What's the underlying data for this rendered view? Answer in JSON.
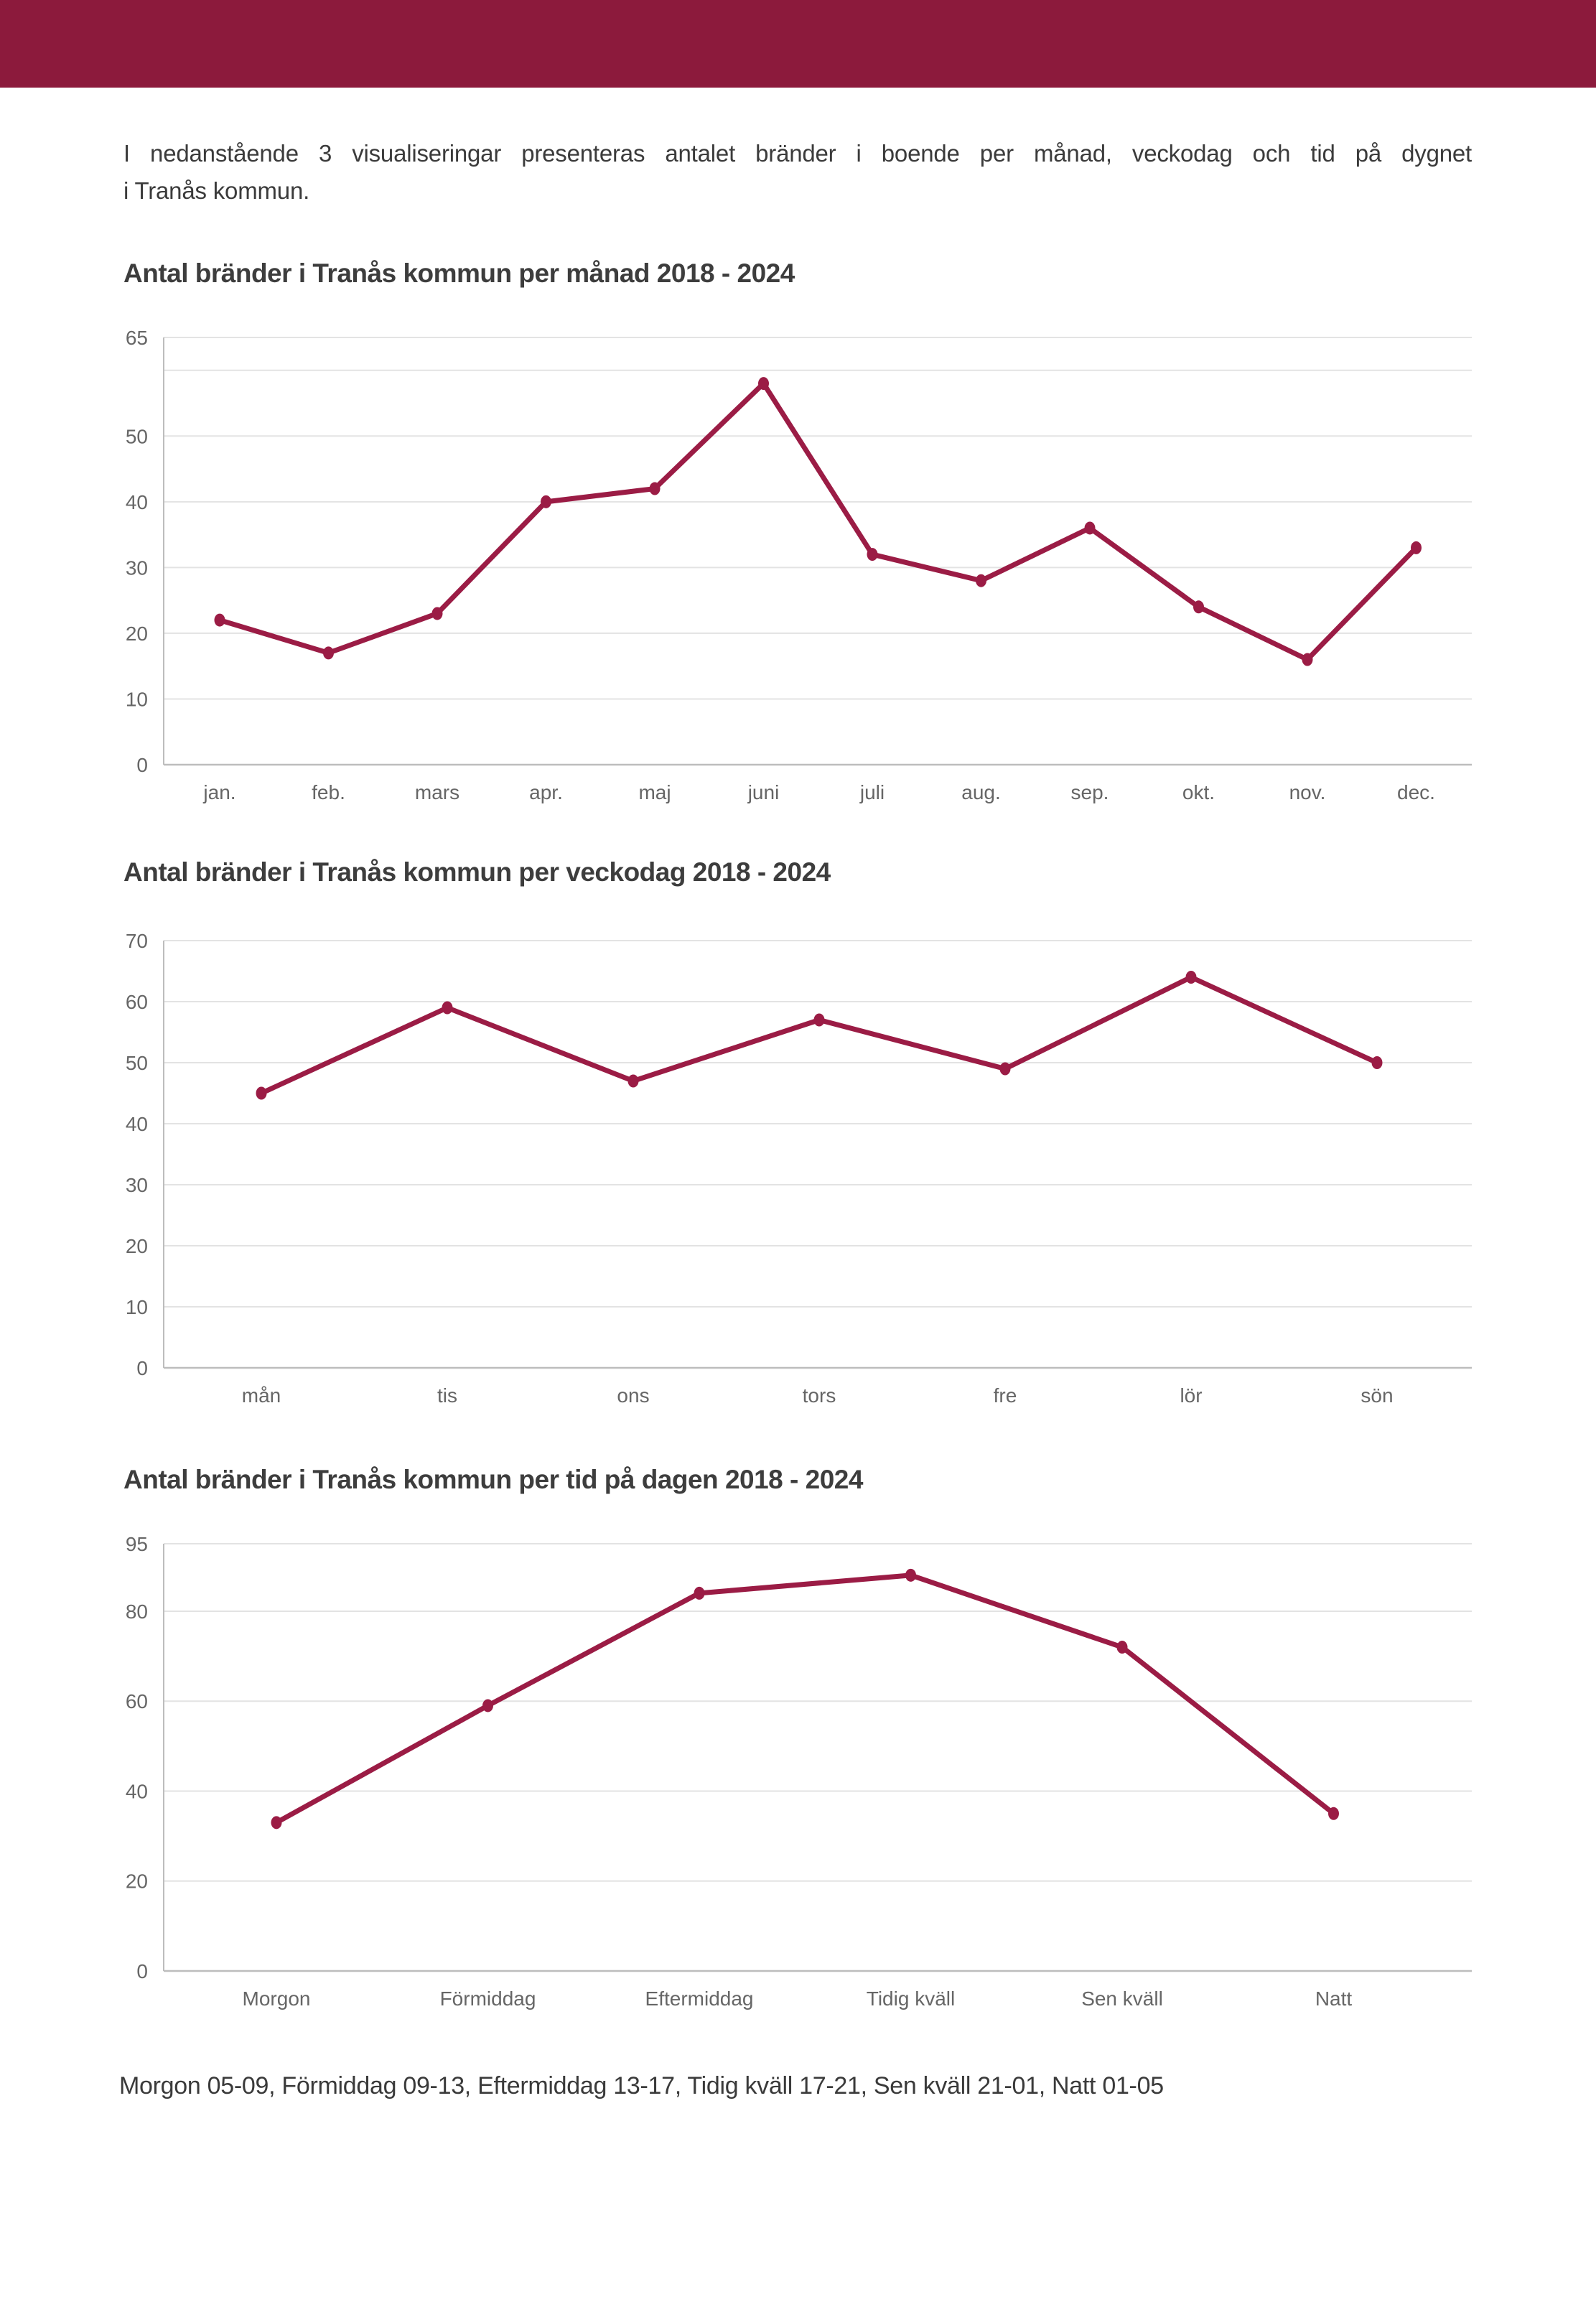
{
  "page": {
    "intro_line1": "I nedanstående 3 visualiseringar presenteras antalet bränder i boende per månad, veckodag och tid på dygnet",
    "intro_line2": "i Tranås kommun.",
    "footnote": "Morgon 05-09, Förmiddag 09-13, Eftermiddag 13-17, Tidig kväll 17-21, Sen kväll 21-01, Natt 01-05"
  },
  "colors": {
    "header_bar": "#8C1A3C",
    "line": "#9B1C45",
    "gridline": "#E3E3E3",
    "axis": "#BDBDBD",
    "title_text": "#3D3D3D",
    "body_text": "#3B3B3B",
    "tick_text": "#666666"
  },
  "chart_data": [
    {
      "type": "line",
      "title": "Antal bränder i Tranås kommun per månad 2018 - 2024",
      "categories": [
        "jan.",
        "feb.",
        "mars",
        "apr.",
        "maj",
        "juni",
        "juli",
        "aug.",
        "sep.",
        "okt.",
        "nov.",
        "dec."
      ],
      "values": [
        22,
        17,
        23,
        40,
        42,
        58,
        32,
        28,
        36,
        24,
        16,
        33
      ],
      "xlabel": "",
      "ylabel": "",
      "ylim": [
        0,
        65
      ],
      "gridlines": [
        0,
        10,
        20,
        30,
        40,
        50,
        60,
        65
      ],
      "ytick_labels": [
        0,
        10,
        20,
        30,
        40,
        50,
        65
      ],
      "grid": true,
      "legend_position": "none"
    },
    {
      "type": "line",
      "title": "Antal bränder i Tranås kommun per veckodag 2018 - 2024",
      "categories": [
        "mån",
        "tis",
        "ons",
        "tors",
        "fre",
        "lör",
        "sön"
      ],
      "values": [
        45,
        59,
        47,
        57,
        49,
        64,
        50
      ],
      "xlabel": "",
      "ylabel": "",
      "ylim": [
        0,
        70
      ],
      "gridlines": [
        0,
        10,
        20,
        30,
        40,
        50,
        60,
        70
      ],
      "ytick_labels": [
        0,
        10,
        20,
        30,
        40,
        50,
        60,
        70
      ],
      "grid": true,
      "legend_position": "none"
    },
    {
      "type": "line",
      "title": "Antal bränder i Tranås kommun per tid på dagen 2018 - 2024",
      "categories": [
        "Morgon",
        "Förmiddag",
        "Eftermiddag",
        "Tidig kväll",
        "Sen kväll",
        "Natt"
      ],
      "values": [
        33,
        59,
        84,
        88,
        72,
        35
      ],
      "xlabel": "",
      "ylabel": "",
      "ylim": [
        0,
        95
      ],
      "gridlines": [
        0,
        20,
        40,
        60,
        80,
        95
      ],
      "ytick_labels": [
        0,
        20,
        40,
        60,
        80,
        95
      ],
      "grid": true,
      "legend_position": "none"
    }
  ]
}
